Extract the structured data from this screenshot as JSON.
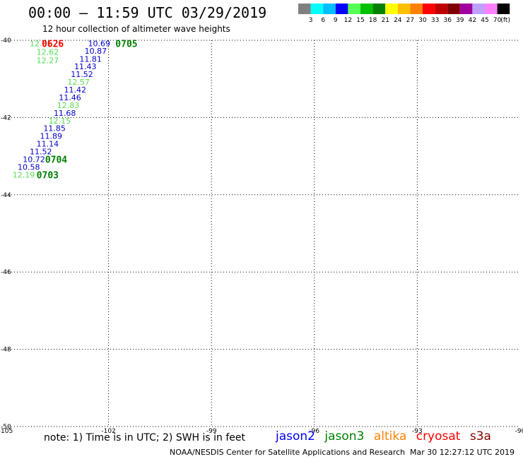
{
  "title": "00:00 – 11:59 UTC 03/29/2019",
  "subtitle": "12 hour collection of altimeter wave heights",
  "legend": {
    "colors": [
      "#808080",
      "#00ffff",
      "#00bfff",
      "#0000ff",
      "#55ff55",
      "#00c000",
      "#008000",
      "#ffff00",
      "#ffc000",
      "#ff8000",
      "#ff0000",
      "#c00000",
      "#800000",
      "#a000a0",
      "#c0a0ff",
      "#ff80ff",
      "#000000"
    ],
    "labels": [
      "3",
      "6",
      "9",
      "12",
      "15",
      "18",
      "21",
      "24",
      "27",
      "30",
      "33",
      "36",
      "39",
      "42",
      "45",
      "70"
    ],
    "unit": "(ft)"
  },
  "map": {
    "lon_ticks": [
      "-105",
      "-102",
      "-99",
      "-96",
      "-93",
      "-90"
    ],
    "lat_ticks": [
      "-40",
      "-42",
      "-44",
      "-46",
      "-48",
      "-50"
    ],
    "lon_range": [
      -105,
      -90
    ],
    "lat_range": [
      -50,
      -40
    ],
    "grid_style": "dotted"
  },
  "measurements": [
    {
      "text": "12.61",
      "color": "#55dd55",
      "lon": -104.3,
      "lat": -40.08
    },
    {
      "text": "12.62",
      "color": "#55dd55",
      "lon": -104.1,
      "lat": -40.3
    },
    {
      "text": "12.27",
      "color": "#55dd55",
      "lon": -104.1,
      "lat": -40.52
    },
    {
      "text": "10.69",
      "color": "#0000cc",
      "lon": -102.6,
      "lat": -40.08
    },
    {
      "text": "10.87",
      "color": "#0000cc",
      "lon": -102.7,
      "lat": -40.27
    },
    {
      "text": "11.81",
      "color": "#0000cc",
      "lon": -102.85,
      "lat": -40.48
    },
    {
      "text": "11.43",
      "color": "#0000cc",
      "lon": -103.0,
      "lat": -40.68
    },
    {
      "text": "11.52",
      "color": "#0000cc",
      "lon": -103.1,
      "lat": -40.88
    },
    {
      "text": "12.57",
      "color": "#55dd55",
      "lon": -103.2,
      "lat": -41.08
    },
    {
      "text": "11.42",
      "color": "#0000cc",
      "lon": -103.3,
      "lat": -41.28
    },
    {
      "text": "11.46",
      "color": "#0000cc",
      "lon": -103.45,
      "lat": -41.48
    },
    {
      "text": "12.83",
      "color": "#55dd55",
      "lon": -103.5,
      "lat": -41.68
    },
    {
      "text": "11.68",
      "color": "#0000cc",
      "lon": -103.6,
      "lat": -41.88
    },
    {
      "text": "12.15",
      "color": "#55dd55",
      "lon": -103.75,
      "lat": -42.08
    },
    {
      "text": "11.85",
      "color": "#0000cc",
      "lon": -103.9,
      "lat": -42.28
    },
    {
      "text": "11.89",
      "color": "#0000cc",
      "lon": -104.0,
      "lat": -42.48
    },
    {
      "text": "11.14",
      "color": "#0000cc",
      "lon": -104.1,
      "lat": -42.68
    },
    {
      "text": "11.52",
      "color": "#0000cc",
      "lon": -104.3,
      "lat": -42.88
    },
    {
      "text": "10.72",
      "color": "#0000cc",
      "lon": -104.5,
      "lat": -43.08
    },
    {
      "text": "10.58",
      "color": "#0000cc",
      "lon": -104.65,
      "lat": -43.28
    },
    {
      "text": "12.19",
      "color": "#55dd55",
      "lon": -104.8,
      "lat": -43.48
    }
  ],
  "times": [
    {
      "text": "0626",
      "color": "#ff0000",
      "lon": -103.95,
      "lat": -40.08
    },
    {
      "text": "0705",
      "color": "#008000",
      "lon": -101.8,
      "lat": -40.08
    },
    {
      "text": "0704",
      "color": "#008000",
      "lon": -103.85,
      "lat": -43.08
    },
    {
      "text": "0703",
      "color": "#008000",
      "lon": -104.1,
      "lat": -43.48
    }
  ],
  "note": "note:  1) Time is in UTC;  2) SWH is in feet",
  "satellites": [
    {
      "name": "jason2",
      "color": "#0000ff"
    },
    {
      "name": "jason3",
      "color": "#008000"
    },
    {
      "name": "altika",
      "color": "#ff8000"
    },
    {
      "name": "cryosat",
      "color": "#ff0000"
    },
    {
      "name": "s3a",
      "color": "#800000"
    }
  ],
  "credit": "NOAA/NESDIS Center for Satellite Applications and Research",
  "timestamp": "Mar 30 12:27:12 UTC 2019"
}
